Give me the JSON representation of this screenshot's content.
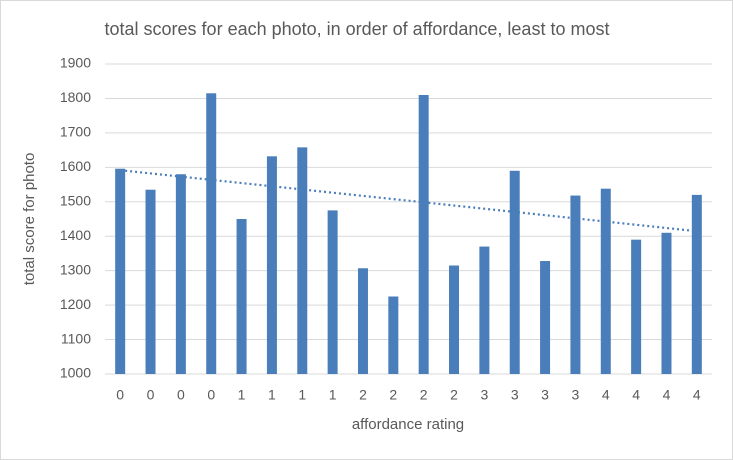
{
  "chart_data": {
    "type": "bar",
    "title": "total scores for each photo, in order of affordance, least to most",
    "x_label": "affordance rating",
    "y_label": "total score for photo",
    "categories": [
      "0",
      "0",
      "0",
      "0",
      "1",
      "1",
      "1",
      "1",
      "2",
      "2",
      "2",
      "2",
      "3",
      "3",
      "3",
      "3",
      "4",
      "4",
      "4",
      "4"
    ],
    "values": [
      1596,
      1535,
      1580,
      1815,
      1450,
      1632,
      1658,
      1475,
      1307,
      1225,
      1810,
      1315,
      1370,
      1590,
      1328,
      1518,
      1538,
      1390,
      1410,
      1520
    ],
    "color": "#4a7ebb",
    "ylim": [
      1000,
      1900
    ],
    "yticks": [
      1000,
      1100,
      1200,
      1300,
      1400,
      1500,
      1600,
      1700,
      1800,
      1900
    ],
    "grid": true,
    "trendline": "linear"
  }
}
